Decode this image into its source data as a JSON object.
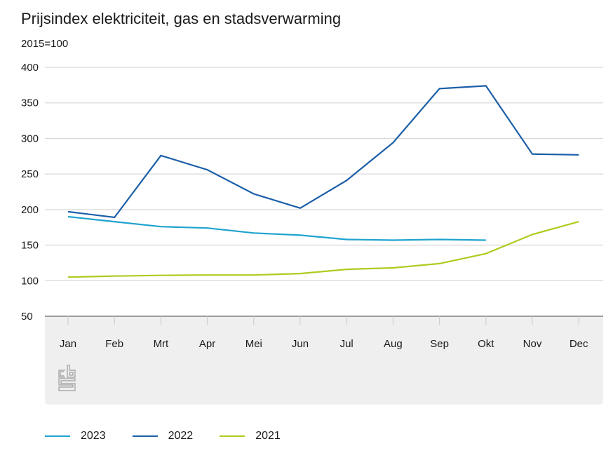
{
  "chart_data": {
    "type": "line",
    "title": "Prijsindex elektriciteit, gas en stadsverwarming",
    "ylabel": "2015=100",
    "xlabel": "",
    "categories": [
      "Jan",
      "Feb",
      "Mrt",
      "Apr",
      "Mei",
      "Jun",
      "Jul",
      "Aug",
      "Sep",
      "Okt",
      "Nov",
      "Dec"
    ],
    "ylim": [
      50,
      400
    ],
    "yticks": [
      "50",
      "100",
      "150",
      "200",
      "250",
      "300",
      "350",
      "400"
    ],
    "ytick_values": [
      50,
      100,
      150,
      200,
      250,
      300,
      350,
      400
    ],
    "grid": true,
    "legend_position": "bottom-left",
    "series": [
      {
        "name": "2023",
        "color": "#1fa3cf",
        "values": [
          190,
          183,
          176,
          174,
          167,
          164,
          158,
          157,
          158,
          157,
          null,
          null
        ]
      },
      {
        "name": "2022",
        "color": "#1b5ea8",
        "values": [
          197,
          189,
          276,
          256,
          222,
          202,
          241,
          294,
          370,
          374,
          278,
          277
        ]
      },
      {
        "name": "2021",
        "color": "#afcb1f",
        "values": [
          105,
          106.5,
          107.5,
          108,
          108,
          110,
          116,
          118,
          124,
          138,
          165,
          183
        ]
      }
    ]
  },
  "colors": {
    "gridline": "#d9d9d9",
    "axis": "#7f7f7f",
    "axis_panel": "#efefef",
    "logo": "#9e9e9e"
  },
  "logo": {
    "name": "cbs-logo",
    "text": "cbs"
  }
}
